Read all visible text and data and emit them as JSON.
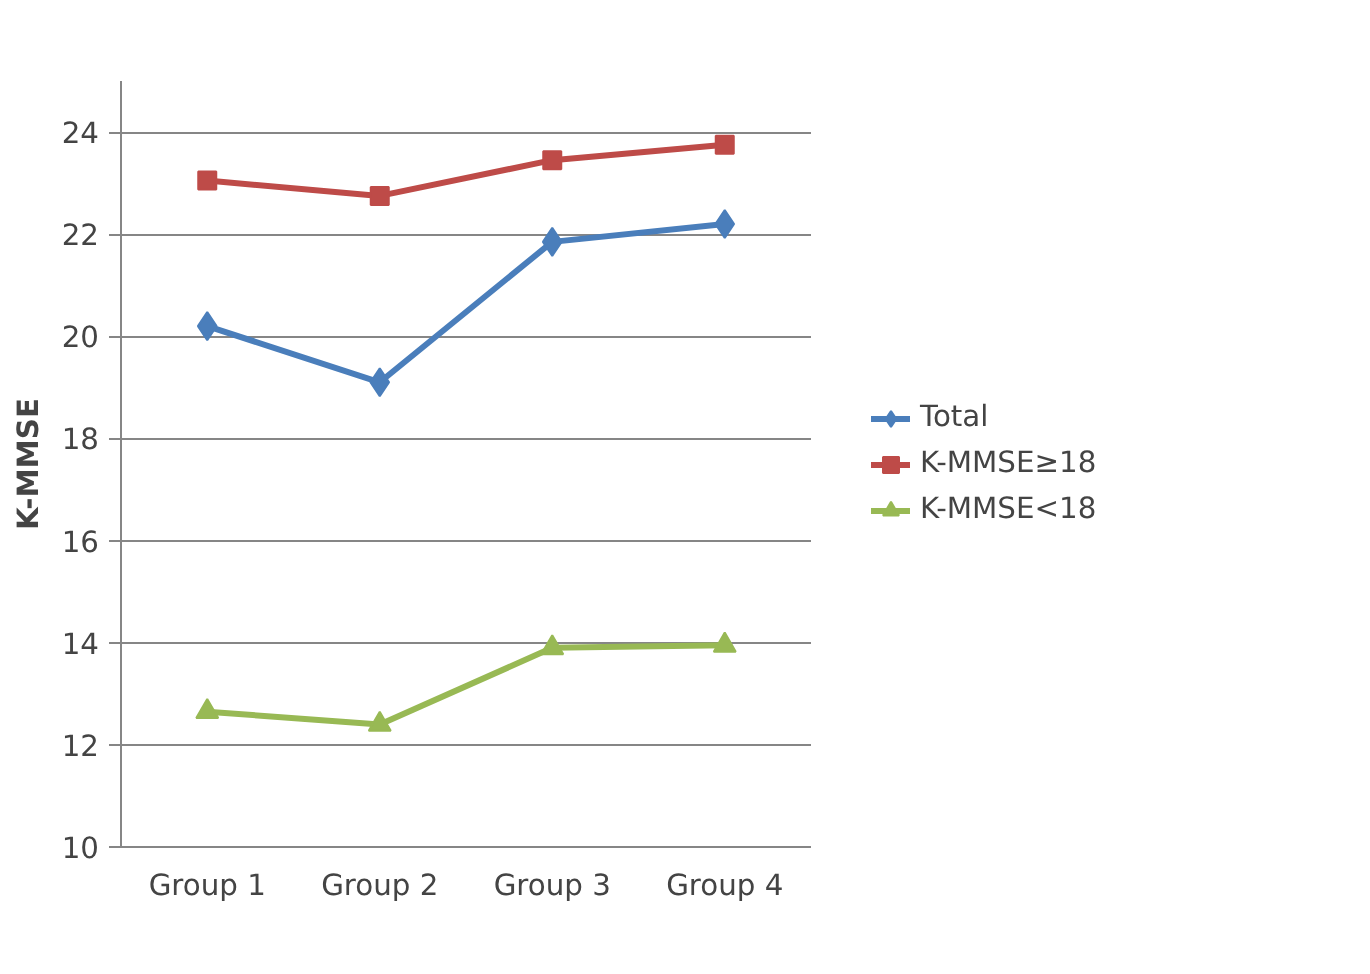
{
  "chart_data": {
    "type": "line",
    "ylabel": "K-MMSE",
    "categories": [
      "Group 1",
      "Group 2",
      "Group 3",
      "Group 4"
    ],
    "series": [
      {
        "name": "Total",
        "color": "#4a7ebb",
        "marker": "diamond",
        "values": [
          20.2,
          19.1,
          21.85,
          22.2
        ]
      },
      {
        "name": "K-MMSE≥18",
        "color": "#be4b48",
        "marker": "square",
        "values": [
          23.05,
          22.75,
          23.45,
          23.75
        ]
      },
      {
        "name": "K-MMSE<18",
        "color": "#98b954",
        "marker": "triangle",
        "values": [
          12.65,
          12.4,
          13.9,
          13.95
        ]
      }
    ],
    "ylim": [
      10,
      25
    ],
    "yticks": [
      10,
      12,
      14,
      16,
      18,
      20,
      22,
      24
    ],
    "grid": "y",
    "legend": "right",
    "line_style": "solid"
  }
}
